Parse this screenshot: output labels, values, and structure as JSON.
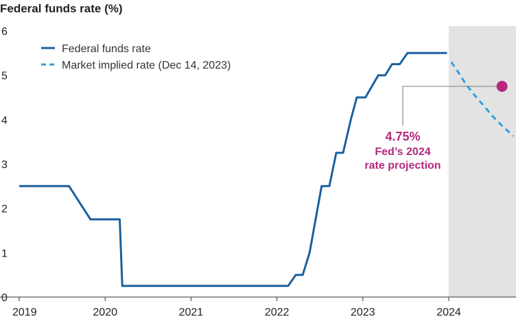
{
  "chart_data": {
    "type": "line",
    "title": "Federal funds rate (%)",
    "xlabel": "",
    "ylabel": "",
    "xlim": [
      2019.0,
      2024.75
    ],
    "ylim": [
      0,
      6
    ],
    "y_ticks": [
      0,
      1,
      2,
      3,
      4,
      5,
      6
    ],
    "x_ticks": [
      2019,
      2020,
      2021,
      2022,
      2023,
      2024
    ],
    "x_tick_labels": [
      "2019",
      "2020",
      "2021",
      "2022",
      "2023",
      "2024"
    ],
    "grid": false,
    "legend_placement": "top-left",
    "projection_region": {
      "from": 2024.0,
      "to": 2024.75
    },
    "series": [
      {
        "name": "Federal funds rate",
        "style": "solid",
        "color": "#1a5fa0",
        "points": [
          [
            2019.0,
            2.5
          ],
          [
            2019.58,
            2.5
          ],
          [
            2019.83,
            1.75
          ],
          [
            2020.17,
            1.75
          ],
          [
            2020.2,
            0.25
          ],
          [
            2022.13,
            0.25
          ],
          [
            2022.22,
            0.5
          ],
          [
            2022.3,
            0.5
          ],
          [
            2022.38,
            1.0
          ],
          [
            2022.52,
            2.5
          ],
          [
            2022.61,
            2.5
          ],
          [
            2022.69,
            3.25
          ],
          [
            2022.77,
            3.25
          ],
          [
            2022.86,
            4.0
          ],
          [
            2022.93,
            4.5
          ],
          [
            2023.03,
            4.5
          ],
          [
            2023.18,
            5.0
          ],
          [
            2023.26,
            5.0
          ],
          [
            2023.34,
            5.25
          ],
          [
            2023.43,
            5.25
          ],
          [
            2023.52,
            5.5
          ],
          [
            2023.98,
            5.5
          ]
        ]
      },
      {
        "name": "Market implied rate (Dec 14, 2023)",
        "style": "dashed",
        "color": "#28a3dc",
        "points": [
          [
            2024.03,
            5.3
          ],
          [
            2024.1,
            5.1
          ],
          [
            2024.2,
            4.8
          ],
          [
            2024.3,
            4.55
          ],
          [
            2024.4,
            4.33
          ],
          [
            2024.5,
            4.1
          ],
          [
            2024.6,
            3.9
          ],
          [
            2024.7,
            3.72
          ],
          [
            2024.75,
            3.63
          ]
        ]
      }
    ],
    "annotation": {
      "x": 2024.62,
      "y": 4.75,
      "value": "4.75%",
      "line1": "Fed’s 2024",
      "line2": "rate projection",
      "color": "#b5287e"
    }
  }
}
